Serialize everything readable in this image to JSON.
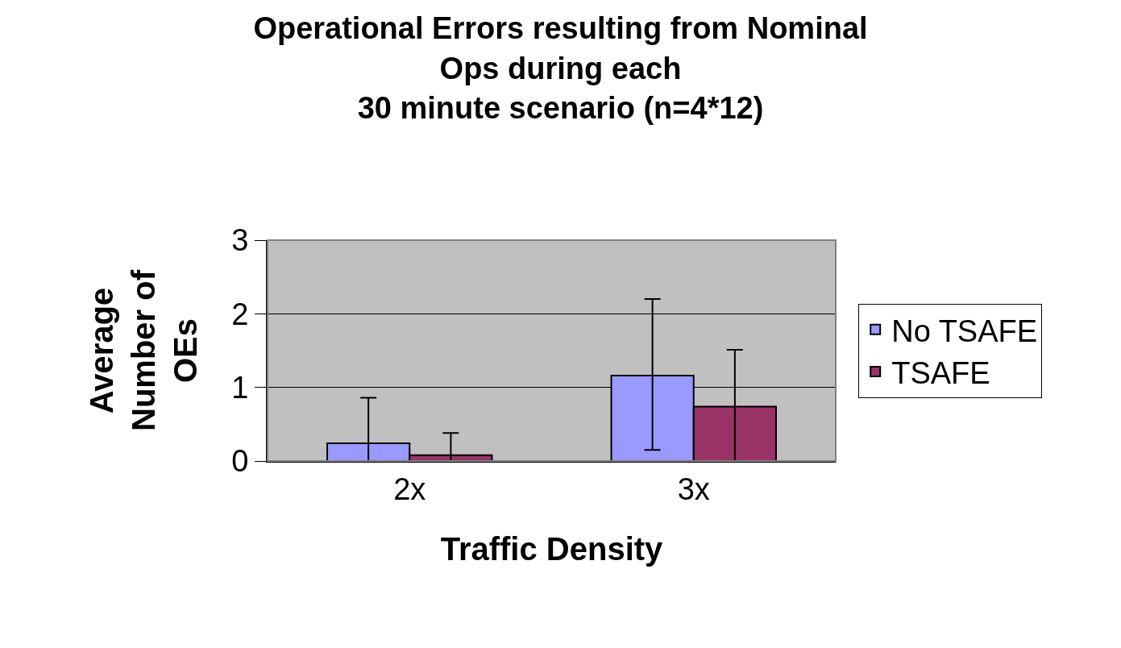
{
  "chart_data": {
    "type": "bar",
    "title": "Operational Errors resulting from Nominal\nOps during each\n30 minute scenario (n=4*12)",
    "xlabel": "Traffic Density",
    "ylabel": "Average\nNumber of\nOEs",
    "categories": [
      "2x",
      "3x"
    ],
    "series": [
      {
        "name": "No TSAFE",
        "color": "#9999ff",
        "values": [
          0.24,
          1.16
        ],
        "errors": [
          [
            0,
            0.86
          ],
          [
            0.15,
            2.2
          ]
        ]
      },
      {
        "name": "TSAFE",
        "color": "#993366",
        "values": [
          0.08,
          0.74
        ],
        "errors": [
          [
            0,
            0.38
          ],
          [
            0,
            1.51
          ]
        ]
      }
    ],
    "ylim": [
      0,
      3
    ],
    "yticks": [
      0,
      1,
      2,
      3
    ],
    "grid": "y",
    "legend": "right"
  }
}
